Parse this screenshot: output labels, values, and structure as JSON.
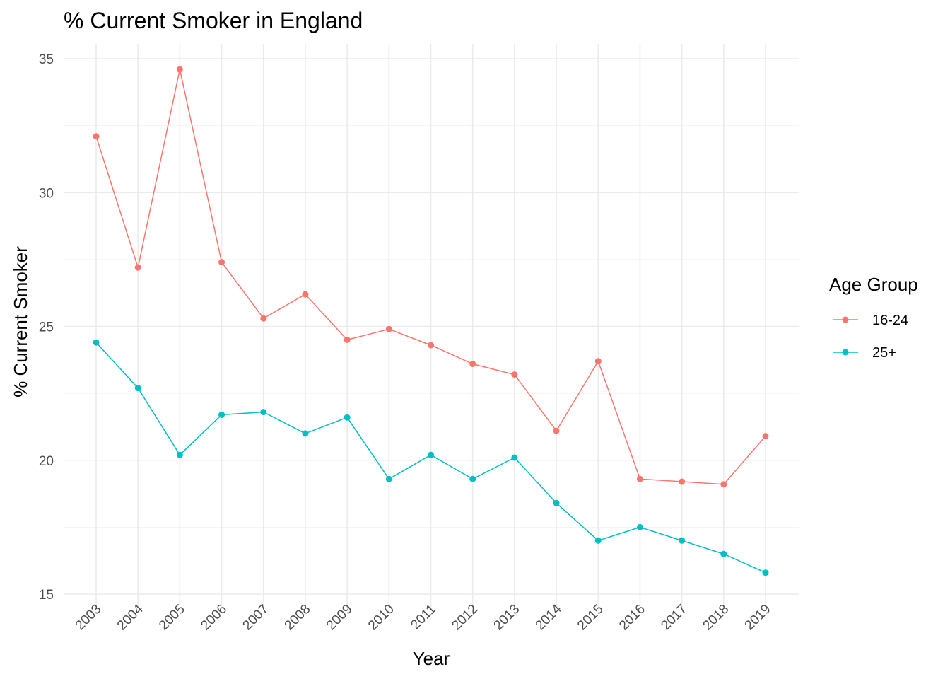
{
  "chart_data": {
    "type": "line",
    "title": "% Current Smoker in England",
    "xlabel": "Year",
    "ylabel": "% Current Smoker",
    "x": [
      "2003",
      "2004",
      "2005",
      "2006",
      "2007",
      "2008",
      "2009",
      "2010",
      "2011",
      "2012",
      "2013",
      "2014",
      "2015",
      "2016",
      "2017",
      "2018",
      "2019"
    ],
    "ylim": [
      15,
      35
    ],
    "yticks": [
      "15",
      "20",
      "25",
      "30",
      "35"
    ],
    "grid": true,
    "legend": {
      "title": "Age Group",
      "position": "right"
    },
    "series": [
      {
        "name": "16-24",
        "color": "#F8766D",
        "values": [
          32.1,
          27.2,
          34.6,
          27.4,
          25.3,
          26.2,
          24.5,
          24.9,
          24.3,
          23.6,
          23.2,
          21.1,
          23.7,
          19.3,
          19.2,
          19.1,
          20.9
        ]
      },
      {
        "name": "25+",
        "color": "#00BFC4",
        "values": [
          24.4,
          22.7,
          20.2,
          21.7,
          21.8,
          21.0,
          21.6,
          19.3,
          20.2,
          19.3,
          20.1,
          18.4,
          17.0,
          17.5,
          17.0,
          16.5,
          15.8
        ]
      }
    ]
  }
}
